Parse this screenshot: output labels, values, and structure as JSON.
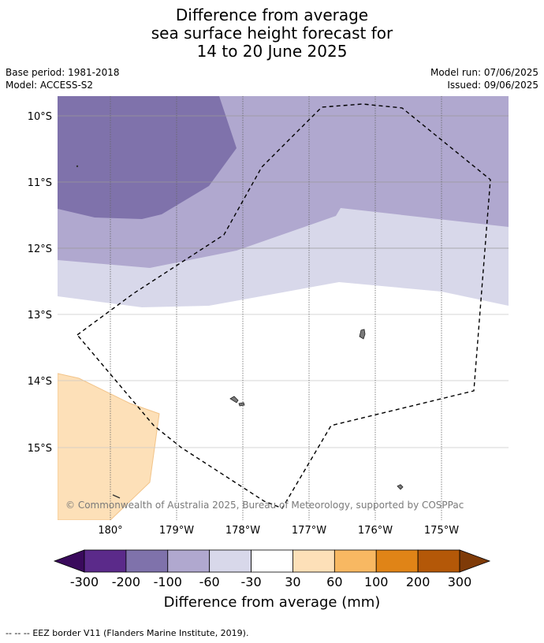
{
  "title": {
    "line1": "Difference from average",
    "line2": "sea surface height forecast for",
    "line3": "14 to 20 June 2025"
  },
  "meta": {
    "base_period": "Base period: 1981-2018",
    "model": "Model: ACCESS-S2",
    "model_run": "Model run: 07/06/2025",
    "issued": "Issued: 09/06/2025"
  },
  "map": {
    "lat_labels": [
      "10°S",
      "11°S",
      "12°S",
      "13°S",
      "14°S",
      "15°S"
    ],
    "lon_labels": [
      "180°",
      "179°W",
      "178°W",
      "177°W",
      "176°W",
      "175°W"
    ],
    "copyright": "© Commonwealth of Australia 2025, Bureau of Meteorology, supported by COSPPac"
  },
  "colorbar": {
    "ticks": [
      "-300",
      "-200",
      "-100",
      "-60",
      "-30",
      "30",
      "60",
      "100",
      "200",
      "300"
    ],
    "colors": [
      "#5b2a8a",
      "#7f72ab",
      "#b0a8cf",
      "#d8d8ea",
      "#ffffff",
      "#fde0b8",
      "#f8b862",
      "#e08417",
      "#b45808"
    ],
    "under_color": "#3a0a5c",
    "over_color": "#7f3b08",
    "title": "Difference from average (mm)"
  },
  "footer": {
    "legend_symbol": "--  --  --",
    "legend_text": "EEZ border V11 (Flanders Marine Institute, 2019)."
  }
}
